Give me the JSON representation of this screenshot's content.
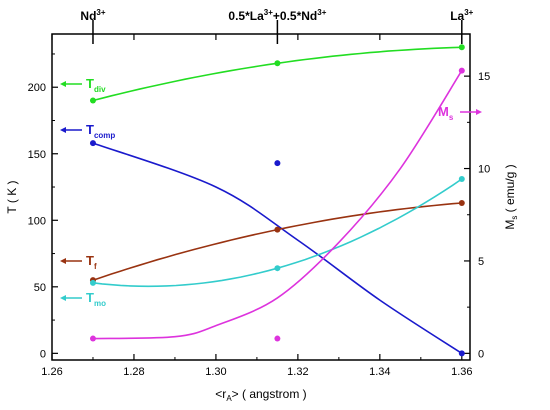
{
  "chart_data": {
    "type": "line",
    "xlabel": {
      "prefix": "<r",
      "sub": "A",
      "suffix": "> ( angstrom )"
    },
    "ylabel": "T ( K )",
    "y2label": {
      "main": "M",
      "sub": "s",
      "rest": " ( emu/g )"
    },
    "xlim": [
      1.26,
      1.362
    ],
    "ylim": [
      -5,
      240
    ],
    "y2lim": [
      -0.36,
      17.28
    ],
    "xticks": [
      1.26,
      1.28,
      1.3,
      1.32,
      1.34,
      1.36
    ],
    "yticks": [
      0,
      50,
      100,
      150,
      200
    ],
    "y2ticks": [
      0,
      5,
      10,
      15
    ],
    "top_labels": [
      {
        "x": 1.27,
        "main": "Nd",
        "sup": "3+"
      },
      {
        "x": 1.315,
        "main": "0.5*La",
        "sup": "3+",
        "main2": "+0.5*Nd",
        "sup2": "3+"
      },
      {
        "x": 1.36,
        "main": "La",
        "sup": "3+"
      }
    ],
    "series": [
      {
        "key": "div",
        "label_main": "T",
        "label_sub": "div",
        "color": "#22dd22",
        "axis": "left",
        "x": [
          1.27,
          1.315,
          1.36
        ],
        "y": [
          190,
          218,
          230
        ],
        "curve": "fit"
      },
      {
        "key": "comp",
        "label_main": "T",
        "label_sub": "comp",
        "color": "#1a1acc",
        "axis": "left",
        "x": [
          1.27,
          1.315,
          1.36
        ],
        "y": [
          158,
          143,
          0
        ],
        "curve_points": [
          [
            1.27,
            158
          ],
          [
            1.3,
            125
          ],
          [
            1.32,
            85
          ],
          [
            1.34,
            40
          ],
          [
            1.36,
            0
          ]
        ]
      },
      {
        "key": "f",
        "label_main": "T",
        "label_sub": "f",
        "color": "#993311",
        "axis": "left",
        "x": [
          1.27,
          1.315,
          1.36
        ],
        "y": [
          55,
          93,
          113
        ],
        "curve": "fit"
      },
      {
        "key": "mo",
        "label_main": "T",
        "label_sub": "mo",
        "color": "#33cccc",
        "axis": "left",
        "x": [
          1.27,
          1.315,
          1.36
        ],
        "y": [
          53,
          64,
          131
        ],
        "curve": "fit"
      },
      {
        "key": "ms",
        "label_main": "M",
        "label_sub": "s",
        "color": "#dd33dd",
        "axis": "right",
        "x": [
          1.27,
          1.315,
          1.36
        ],
        "y": [
          0.8,
          0.8,
          15.3
        ],
        "curve_points": [
          [
            1.27,
            0.8
          ],
          [
            1.29,
            0.9
          ],
          [
            1.3,
            1.5
          ],
          [
            1.315,
            3.0
          ],
          [
            1.33,
            6.0
          ],
          [
            1.345,
            10.0
          ],
          [
            1.36,
            15.3
          ]
        ]
      }
    ]
  }
}
